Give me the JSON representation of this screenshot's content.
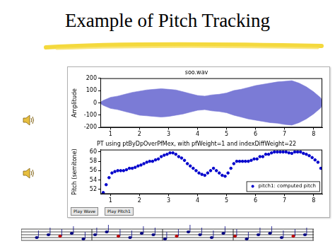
{
  "title": "Example of Pitch Tracking",
  "buttons": [
    "Play Wave",
    "Play Pitch1"
  ],
  "chart_data": [
    {
      "type": "area",
      "title": "soo.wav",
      "ylabel": "Amplitude",
      "x": [
        0.65,
        0.75,
        1.0,
        1.25,
        1.5,
        1.75,
        2.0,
        2.25,
        2.5,
        2.75,
        3.0,
        3.25,
        3.5,
        3.75,
        4.0,
        4.25,
        4.5,
        4.75,
        5.0,
        5.25,
        5.5,
        5.75,
        6.0,
        6.25,
        6.5,
        6.75,
        7.0,
        7.25,
        7.5,
        7.75,
        8.0,
        8.25,
        8.3
      ],
      "series": [
        {
          "color": "#7b7bd6",
          "values": [
            5,
            20,
            45,
            55,
            70,
            85,
            95,
            105,
            110,
            115,
            110,
            105,
            90,
            75,
            60,
            55,
            65,
            70,
            80,
            100,
            110,
            125,
            140,
            150,
            160,
            170,
            175,
            180,
            160,
            130,
            90,
            40,
            10
          ]
        },
        {
          "color": "#7b7bd6",
          "values": [
            -5,
            -20,
            -45,
            -55,
            -70,
            -85,
            -100,
            -105,
            -110,
            -115,
            -110,
            -100,
            -90,
            -75,
            -60,
            -55,
            -65,
            -70,
            -80,
            -100,
            -115,
            -130,
            -140,
            -150,
            -160,
            -165,
            -175,
            -180,
            -160,
            -130,
            -90,
            -40,
            -10
          ]
        }
      ],
      "xlim": [
        0.65,
        8.3
      ],
      "xticks": [
        1,
        2,
        3,
        4,
        5,
        6,
        7,
        8
      ],
      "ylim": [
        -200,
        200
      ],
      "yticks": [
        -200,
        -100,
        0,
        100,
        200
      ],
      "grid": false
    },
    {
      "type": "scatter",
      "title": "PT using ptByDpOverPfMex, with pfWeight=1 and indexDiffWeight=22",
      "ylabel": "Pitch (semitone)",
      "x": [
        0.75,
        0.85,
        0.95,
        1.05,
        1.15,
        1.25,
        1.35,
        1.45,
        1.55,
        1.65,
        1.75,
        1.85,
        1.95,
        2.05,
        2.15,
        2.25,
        2.35,
        2.45,
        2.55,
        2.65,
        2.75,
        2.85,
        2.95,
        3.05,
        3.15,
        3.25,
        3.35,
        3.45,
        3.55,
        3.65,
        3.75,
        3.85,
        3.95,
        4.05,
        4.15,
        4.25,
        4.35,
        4.45,
        4.55,
        4.65,
        4.75,
        4.85,
        4.95,
        5.05,
        5.15,
        5.25,
        5.35,
        5.45,
        5.55,
        5.65,
        5.75,
        5.85,
        5.95,
        6.05,
        6.15,
        6.25,
        6.35,
        6.45,
        6.55,
        6.65,
        6.75,
        6.85,
        6.95,
        7.05,
        7.15,
        7.25,
        7.35,
        7.45,
        7.55,
        7.65,
        7.75,
        7.85,
        7.95,
        8.05,
        8.15,
        8.25
      ],
      "series": [
        {
          "name": "pitch1: computed pitch",
          "color": "#0000cc",
          "marker": "circle",
          "line_style": "none",
          "values": [
            51.3,
            53,
            54.5,
            55.5,
            55.8,
            56,
            56,
            56,
            56.2,
            56.5,
            56.5,
            56.7,
            57,
            57.2,
            57.5,
            57.8,
            58,
            58,
            58.3,
            58.5,
            59,
            59.3,
            59.5,
            59.8,
            59.8,
            59.5,
            59,
            58.7,
            58.2,
            57.5,
            57,
            56.5,
            56,
            55.5,
            55.2,
            55,
            55.5,
            56,
            56.5,
            56,
            55.5,
            55,
            54.8,
            55.5,
            56.5,
            57.5,
            58,
            58,
            58,
            58,
            58,
            58.2,
            58.5,
            58.5,
            59,
            59,
            59.5,
            59.5,
            59.8,
            60,
            60,
            60,
            60,
            60,
            59.8,
            59.7,
            60,
            60,
            60,
            59.7,
            59.5,
            59.2,
            58.8,
            58.3,
            57.8,
            56.5
          ]
        }
      ],
      "xlim": [
        0.65,
        8.3
      ],
      "xticks": [
        1,
        2,
        3,
        4,
        5,
        6,
        7,
        8
      ],
      "ylim": [
        51,
        60.5
      ],
      "yticks": [
        52,
        54,
        56,
        58,
        60
      ],
      "grid": false,
      "legend": "lower right"
    }
  ]
}
